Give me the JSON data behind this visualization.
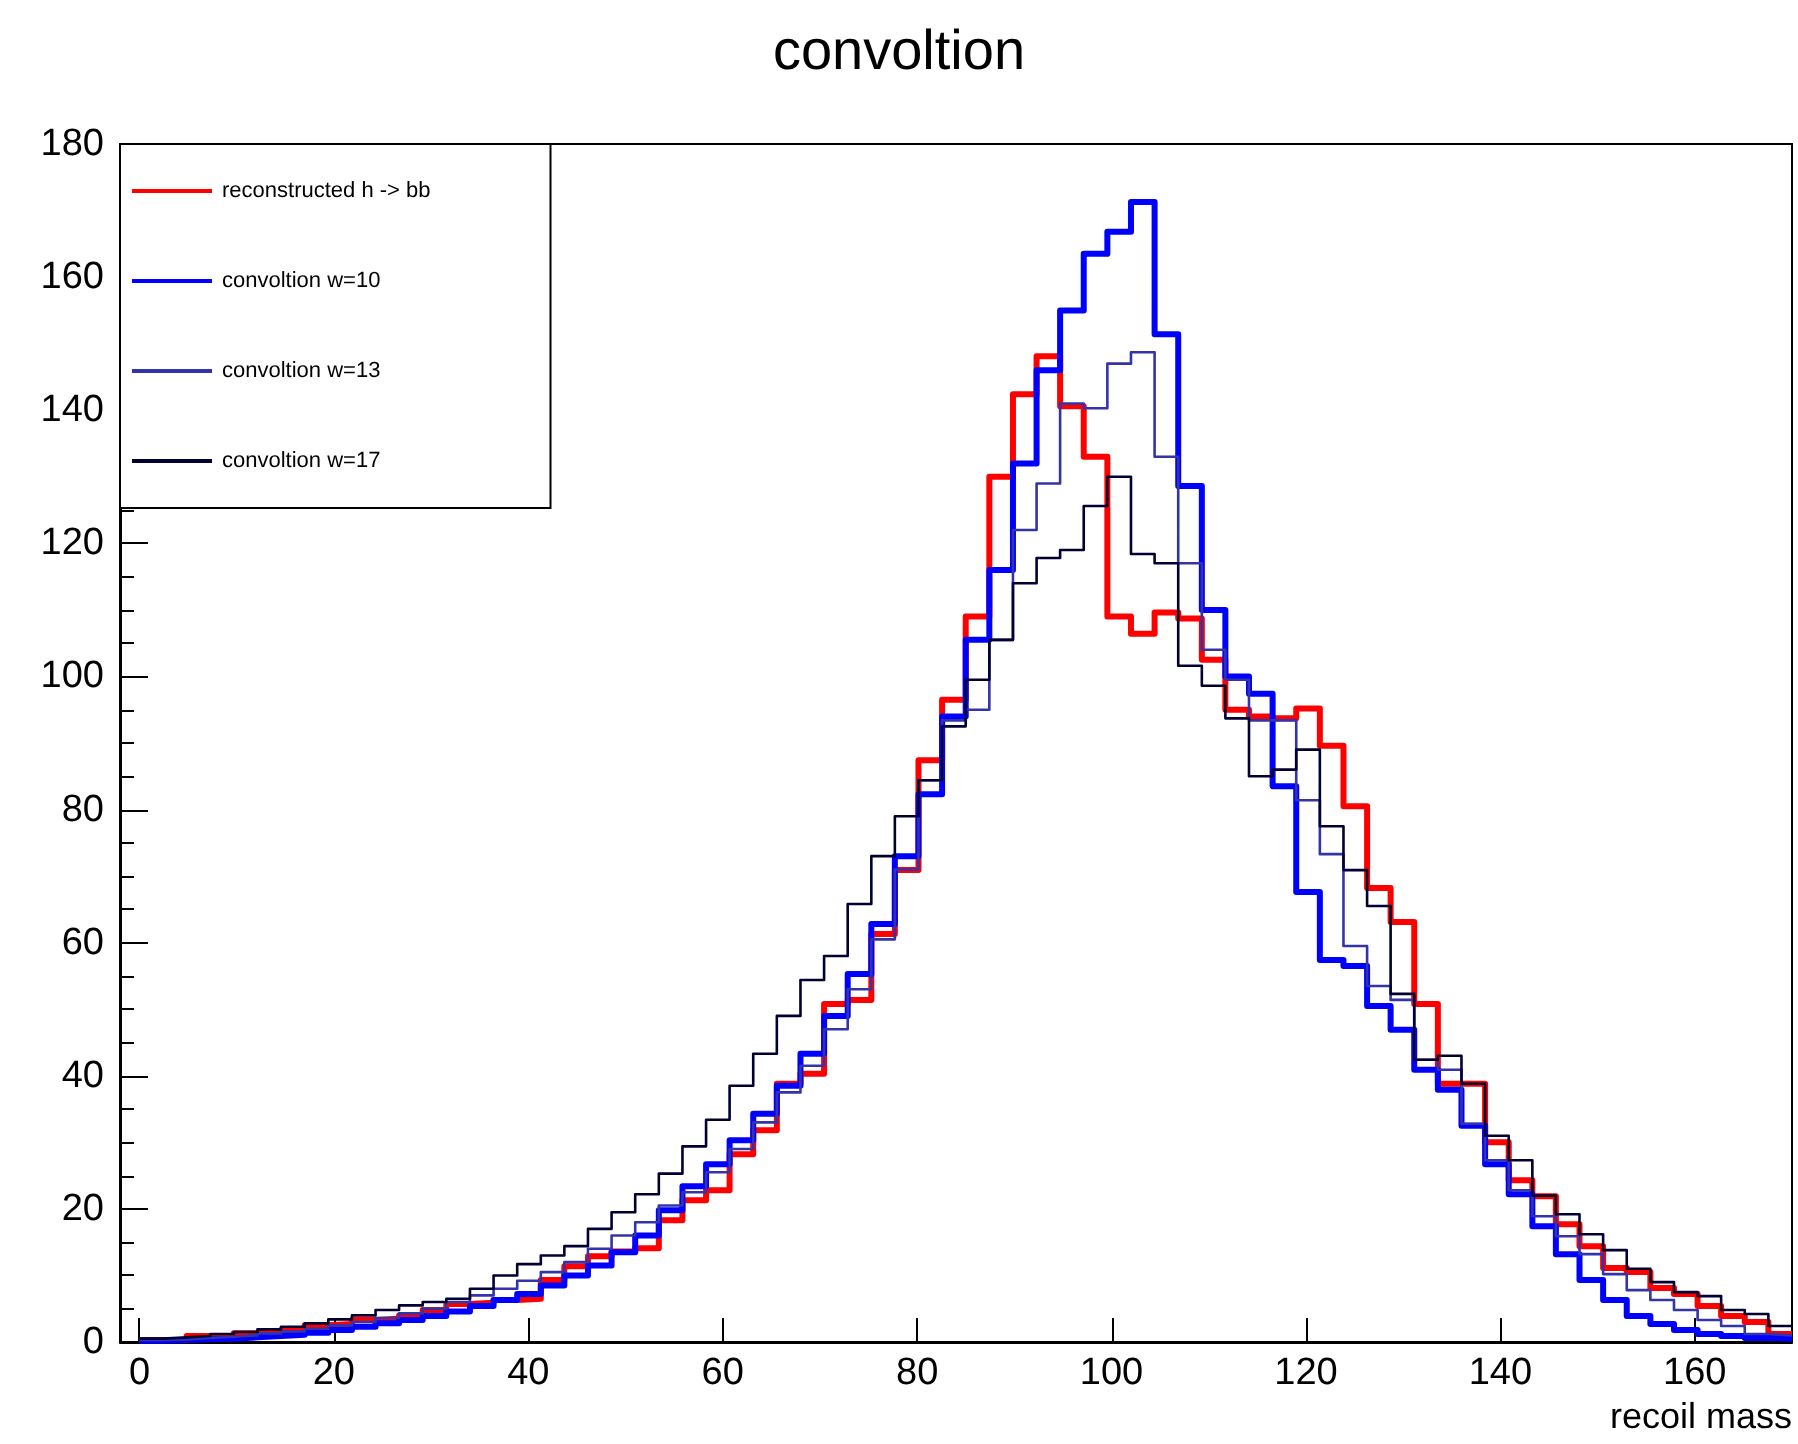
{
  "chart_data": {
    "type": "histogram",
    "title": "convoltion",
    "xlabel": "recoil mass",
    "bins": [
      0,
      2.43,
      4.86,
      7.29,
      9.71,
      12.14,
      14.57,
      17,
      19.43,
      21.86,
      24.29,
      26.71,
      29.14,
      31.57,
      34,
      36.43,
      38.86,
      41.29,
      43.71,
      46.14,
      48.57,
      51,
      53.43,
      55.86,
      58.29,
      60.71,
      63.14,
      65.57,
      68,
      70.43,
      72.86,
      75.29,
      77.71,
      80.14,
      82.57,
      85,
      87.43,
      89.86,
      92.29,
      94.71,
      97.14,
      99.57,
      102,
      104.43,
      106.86,
      109.29,
      111.71,
      114.14,
      116.57,
      119,
      121.43,
      123.86,
      126.29,
      128.71,
      131.14,
      133.57,
      136,
      138.43,
      140.86,
      143.29,
      145.71,
      148.14,
      150.57,
      153,
      155.43,
      157.86,
      160.29,
      162.71,
      165.14,
      167.57,
      170
    ],
    "series": [
      {
        "name": "reconstructed h -> bb",
        "color": "#ff0000",
        "values": [
          0.3,
          0.3,
          0.9,
          0.9,
          1.3,
          1.5,
          1.8,
          2.5,
          2.7,
          3.3,
          3.5,
          4,
          4.8,
          5.7,
          5.9,
          6.3,
          6.5,
          9.3,
          11.4,
          12.9,
          13.6,
          14.1,
          18.3,
          21.3,
          22.8,
          28.2,
          31.8,
          38.8,
          40.3,
          50.8,
          51.4,
          61.3,
          70.9,
          87.4,
          96.5,
          109,
          130,
          142.4,
          148.1,
          140.6,
          133,
          109,
          106.4,
          109.6,
          108.7,
          102.5,
          95,
          94,
          93.7,
          95.2,
          89.6,
          80.5,
          68.2,
          63.1,
          50.8,
          38.8,
          38.8,
          30,
          24.3,
          21.9,
          17.7,
          14.4,
          11.1,
          10.5,
          8.1,
          7.2,
          5.4,
          3.9,
          3,
          1.2
        ]
      },
      {
        "name": "convoltion w=10",
        "color": "#0000ff",
        "values": [
          0.2,
          0.3,
          0.4,
          0.5,
          0.7,
          0.9,
          1.1,
          1.4,
          1.8,
          2.3,
          2.8,
          3.3,
          3.9,
          4.6,
          5.4,
          6.3,
          7.2,
          8.5,
          10,
          11.5,
          13.5,
          16,
          19.8,
          23.4,
          26.7,
          30.3,
          34.3,
          38.5,
          43.3,
          49,
          55.3,
          62.8,
          73,
          82.3,
          94,
          105.5,
          116,
          132,
          146,
          155,
          163.5,
          166.8,
          171.3,
          151.4,
          128.6,
          110,
          100,
          97.4,
          83.5,
          67.6,
          57.4,
          56.5,
          50.5,
          46.9,
          40.9,
          37.9,
          32.5,
          26.7,
          22.2,
          17.4,
          13.2,
          9.3,
          6.3,
          3.9,
          2.7,
          1.8,
          1.2,
          0.9,
          0.6,
          0.5
        ]
      },
      {
        "name": "convoltion w=13",
        "color": "#3333aa",
        "values": [
          0.3,
          0.4,
          0.6,
          0.8,
          1,
          1.3,
          1.6,
          2,
          2.5,
          3,
          3.6,
          4.3,
          5,
          6,
          7,
          8,
          9.2,
          10.5,
          12,
          14,
          16,
          18,
          20.5,
          22.5,
          25.5,
          29,
          33,
          37.5,
          41.5,
          47,
          53,
          60.5,
          71,
          84.4,
          93.4,
          95,
          105.5,
          122,
          129,
          141,
          140.3,
          147,
          148.7,
          133,
          117,
          104,
          99.5,
          93.4,
          93.4,
          81.4,
          73.3,
          59.5,
          53.5,
          51.4,
          42.4,
          40.9,
          32.8,
          27.3,
          22.8,
          18.9,
          15.9,
          13.2,
          10.2,
          7.8,
          6.3,
          4.8,
          3.3,
          2.4,
          1.2,
          1
        ]
      },
      {
        "name": "convoltion w=17",
        "color": "#000033",
        "values": [
          0.5,
          0.7,
          0.9,
          1.2,
          1.5,
          1.9,
          2.3,
          2.8,
          3.4,
          4,
          4.8,
          5.5,
          6,
          6.5,
          8,
          10,
          11.7,
          13,
          14.4,
          17,
          19.5,
          22.2,
          25.3,
          29.4,
          33.4,
          38.5,
          43.3,
          49,
          54.4,
          58,
          65.8,
          73,
          79,
          84.4,
          92.5,
          99.5,
          105.5,
          114,
          117.8,
          119,
          125.6,
          130,
          118.4,
          117,
          101.6,
          98.6,
          93.7,
          85,
          86,
          89,
          77.5,
          70.9,
          65.5,
          52.3,
          42.4,
          43,
          38.8,
          31,
          27.3,
          22,
          19.2,
          16.2,
          13.8,
          11,
          9,
          7.5,
          6.9,
          4.8,
          4.2,
          2.4
        ]
      }
    ],
    "xlim": [
      -2,
      170
    ],
    "xticks": [
      0,
      20,
      40,
      60,
      80,
      100,
      120,
      140,
      160
    ],
    "ylim": [
      0,
      180
    ],
    "yticks": [
      0,
      20,
      40,
      60,
      80,
      100,
      120,
      140,
      160,
      180
    ],
    "legend": "top left"
  }
}
